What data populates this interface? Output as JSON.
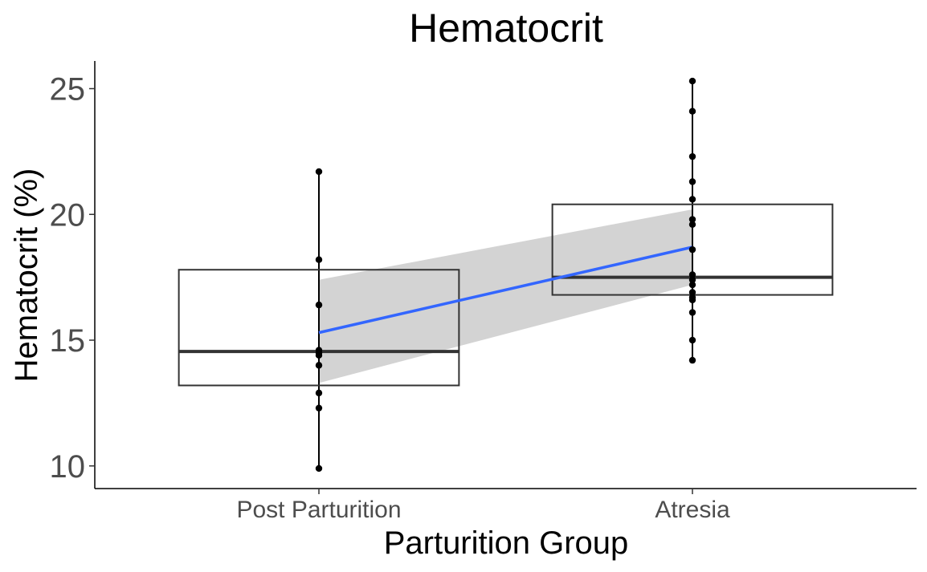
{
  "chart_data": {
    "type": "box",
    "title": "Hematocrit",
    "xlabel": "Parturition Group",
    "ylabel": "Hematocrit (%)",
    "categories": [
      "Post Parturition",
      "Atresia"
    ],
    "ylim": [
      9.1,
      26.1
    ],
    "yticks": [
      10,
      15,
      20,
      25
    ],
    "grid": false,
    "legend": "none",
    "boxes": [
      {
        "category": "Post Parturition",
        "lower_whisker": 9.9,
        "q1": 13.2,
        "median": 14.55,
        "q3": 17.8,
        "upper_whisker": 21.7
      },
      {
        "category": "Atresia",
        "lower_whisker": 14.2,
        "q1": 16.8,
        "median": 17.5,
        "q3": 20.4,
        "upper_whisker": 25.3
      }
    ],
    "points": [
      {
        "category": "Post Parturition",
        "values": [
          21.7,
          18.2,
          16.4,
          14.6,
          14.5,
          14.4,
          14.0,
          12.9,
          12.3,
          9.9
        ]
      },
      {
        "category": "Atresia",
        "values": [
          25.3,
          24.1,
          22.3,
          21.3,
          20.6,
          19.8,
          19.6,
          18.6,
          17.6,
          17.4,
          17.2,
          16.9,
          16.7,
          16.6,
          16.1,
          15.0,
          14.2
        ]
      }
    ],
    "trend": {
      "type": "linear",
      "color": "#3366ff",
      "band_color": "#d3d3d3",
      "y_start": 15.3,
      "y_end": 18.7,
      "ci_start": [
        13.3,
        17.4
      ],
      "ci_end": [
        17.2,
        20.2
      ]
    },
    "colors": {
      "box_outline": "#333333",
      "points": "#000000",
      "axis": "#000000"
    }
  }
}
